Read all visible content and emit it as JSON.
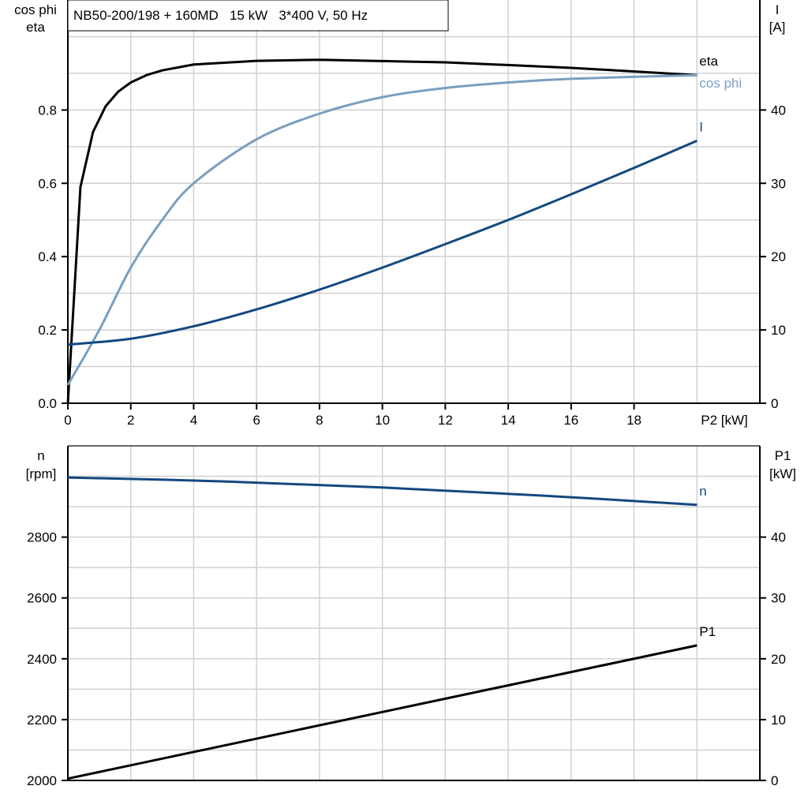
{
  "chart_data": [
    {
      "type": "line",
      "title": "NB50-200/198 + 160MD   15 kW   3*400 V, 50 Hz",
      "xlabel": "P2 [kW]",
      "ylabel_left": [
        "cos phi",
        "eta"
      ],
      "ylabel_right": [
        "I",
        "[A]"
      ],
      "xlim": [
        0,
        22
      ],
      "ylim_left": [
        0,
        1.1
      ],
      "ylim_right": [
        0,
        55
      ],
      "x_ticks": [
        0,
        2,
        4,
        6,
        8,
        10,
        12,
        14,
        16,
        18
      ],
      "y_ticks_left": [
        "0.0",
        "0.2",
        "0.4",
        "0.6",
        "0.8"
      ],
      "y_ticks_right": [
        "0",
        "10",
        "20",
        "30",
        "40"
      ],
      "grid": true,
      "series": [
        {
          "name": "eta",
          "axis": "left",
          "color": "#000000",
          "x": [
            0,
            0.4,
            0.8,
            1.2,
            1.6,
            2,
            2.5,
            3,
            4,
            6,
            8,
            12,
            16,
            20
          ],
          "y": [
            0,
            0.59,
            0.74,
            0.81,
            0.85,
            0.875,
            0.895,
            0.908,
            0.924,
            0.934,
            0.937,
            0.93,
            0.915,
            0.895
          ]
        },
        {
          "name": "cos phi",
          "axis": "left",
          "color": "#7a9ec0",
          "x": [
            0,
            1,
            2,
            3,
            4,
            6,
            8,
            10,
            12,
            14,
            16,
            20
          ],
          "y": [
            0.05,
            0.2,
            0.37,
            0.5,
            0.6,
            0.72,
            0.79,
            0.835,
            0.86,
            0.875,
            0.885,
            0.895
          ]
        },
        {
          "name": "I",
          "axis": "right",
          "color": "#13497f",
          "x": [
            0,
            2,
            4,
            6,
            8,
            10,
            12,
            14,
            16,
            18,
            20
          ],
          "y": [
            8,
            8.8,
            10.5,
            12.8,
            15.5,
            18.5,
            21.7,
            25,
            28.5,
            32.1,
            35.8
          ]
        }
      ]
    },
    {
      "type": "line",
      "xlim": [
        0,
        22
      ],
      "ylabel_left": [
        "n",
        "[rpm]"
      ],
      "ylabel_right": [
        "P1",
        "[kW]"
      ],
      "ylim_left": [
        2000,
        3100
      ],
      "ylim_right": [
        0,
        55
      ],
      "y_ticks_left": [
        "2000",
        "2200",
        "2400",
        "2600",
        "2800"
      ],
      "y_ticks_right": [
        "0",
        "10",
        "20",
        "30",
        "40"
      ],
      "grid": true,
      "series": [
        {
          "name": "n",
          "axis": "left",
          "color": "#13497f",
          "x": [
            0,
            5,
            10,
            15,
            20
          ],
          "y": [
            2996,
            2983,
            2963,
            2937,
            2906
          ]
        },
        {
          "name": "P1",
          "axis": "right",
          "color": "#000000",
          "x": [
            0,
            20
          ],
          "y": [
            0.3,
            22.2
          ]
        }
      ]
    }
  ]
}
